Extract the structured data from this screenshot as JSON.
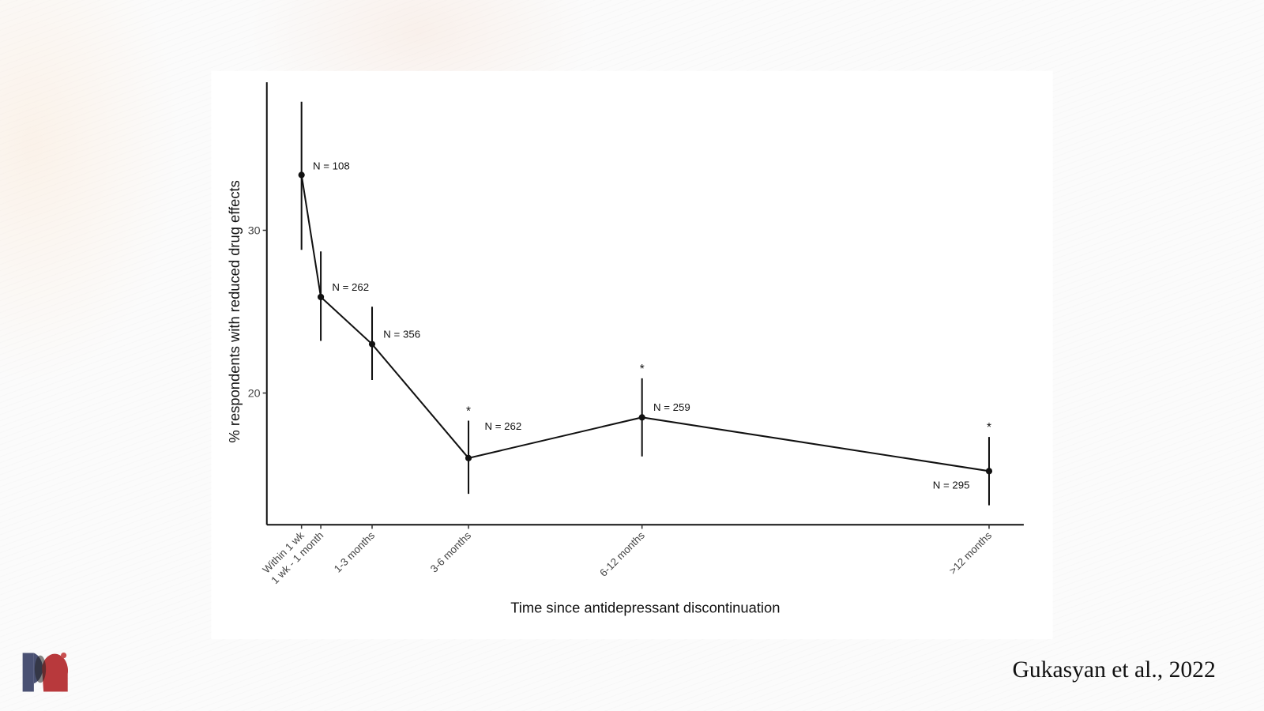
{
  "citation": "Gukasyan et al., 2022",
  "colors": {
    "line": "#111111",
    "logo_blue": "#4a5173",
    "logo_red": "#b8393c"
  },
  "chart_data": {
    "type": "line",
    "title": "",
    "xlabel": "Time since antidepressant discontinuation",
    "ylabel": "% respondents with reduced drug effects",
    "categories": [
      "Within 1 wk",
      "1 wk - 1 month",
      "1-3 months",
      "3-6 months",
      "6-12 months",
      ">12 months"
    ],
    "x_positions_months": [
      0.17,
      0.67,
      2,
      4.5,
      9,
      18
    ],
    "xlim": [
      -0.73,
      18.9
    ],
    "ylim": [
      11.9,
      39.1
    ],
    "yticks": [
      20,
      30
    ],
    "ytick_labels": [
      "20",
      "30"
    ],
    "grid": false,
    "series": [
      {
        "name": "reduced drug effects",
        "values": [
          33.4,
          25.9,
          23.0,
          16.0,
          18.5,
          15.2
        ],
        "ci_low": [
          28.8,
          23.2,
          20.8,
          13.8,
          16.1,
          13.1
        ],
        "ci_high": [
          37.9,
          28.7,
          25.3,
          18.3,
          20.9,
          17.3
        ],
        "labels": [
          "N = 108",
          "N = 262",
          "N = 356",
          "N = 262",
          "N = 259",
          "N = 295"
        ],
        "significant": [
          false,
          false,
          false,
          true,
          true,
          true
        ]
      }
    ],
    "significance_marker": "*"
  }
}
